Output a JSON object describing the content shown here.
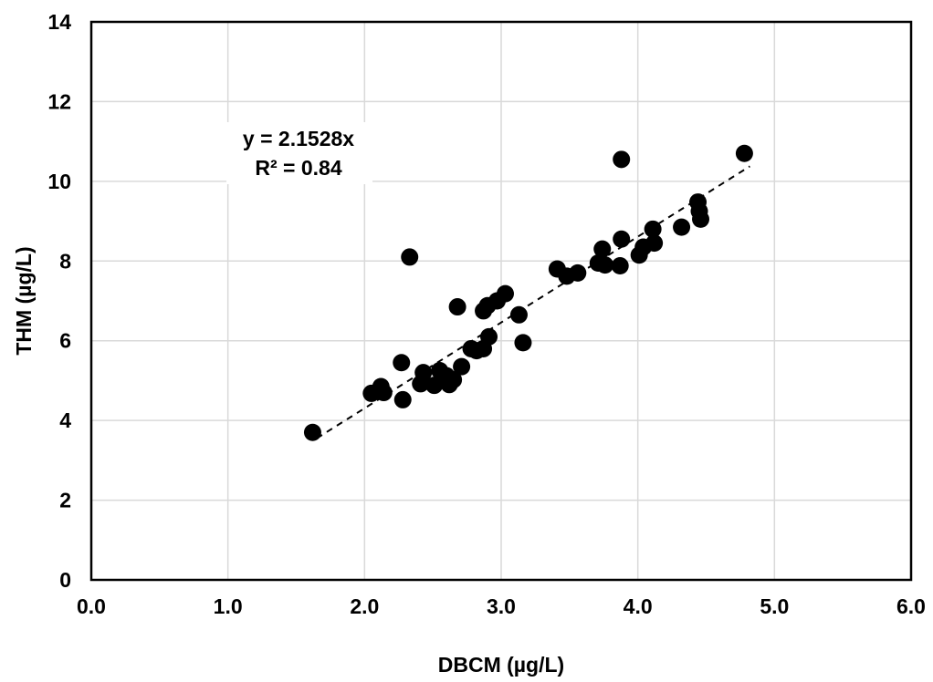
{
  "chart_data": {
    "type": "scatter",
    "xlabel": "DBCM (µg/L)",
    "ylabel": "THM (µg/L)",
    "xlim": [
      0,
      6
    ],
    "ylim": [
      0,
      14
    ],
    "xticks": [
      "0.0",
      "1.0",
      "2.0",
      "3.0",
      "4.0",
      "5.0",
      "6.0"
    ],
    "yticks": [
      "0",
      "2",
      "4",
      "6",
      "8",
      "10",
      "12",
      "14"
    ],
    "grid": true,
    "marker_color": "#000000",
    "series": [
      {
        "points": [
          [
            1.62,
            3.7
          ],
          [
            2.05,
            4.68
          ],
          [
            2.12,
            4.85
          ],
          [
            2.14,
            4.7
          ],
          [
            2.27,
            5.45
          ],
          [
            2.28,
            4.52
          ],
          [
            2.33,
            8.1
          ],
          [
            2.41,
            4.92
          ],
          [
            2.43,
            5.2
          ],
          [
            2.51,
            4.88
          ],
          [
            2.55,
            5.25
          ],
          [
            2.6,
            5.12
          ],
          [
            2.62,
            4.9
          ],
          [
            2.65,
            5.02
          ],
          [
            2.68,
            6.85
          ],
          [
            2.71,
            5.35
          ],
          [
            2.78,
            5.8
          ],
          [
            2.82,
            5.75
          ],
          [
            2.87,
            5.8
          ],
          [
            2.87,
            6.75
          ],
          [
            2.9,
            6.88
          ],
          [
            2.91,
            6.1
          ],
          [
            2.97,
            7.0
          ],
          [
            3.03,
            7.18
          ],
          [
            3.13,
            6.65
          ],
          [
            3.16,
            5.95
          ],
          [
            3.41,
            7.8
          ],
          [
            3.48,
            7.62
          ],
          [
            3.56,
            7.7
          ],
          [
            3.71,
            7.95
          ],
          [
            3.74,
            8.3
          ],
          [
            3.76,
            7.9
          ],
          [
            3.87,
            7.88
          ],
          [
            3.88,
            10.55
          ],
          [
            3.88,
            8.55
          ],
          [
            4.01,
            8.15
          ],
          [
            4.04,
            8.35
          ],
          [
            4.11,
            8.8
          ],
          [
            4.12,
            8.45
          ],
          [
            4.32,
            8.85
          ],
          [
            4.44,
            9.48
          ],
          [
            4.45,
            9.25
          ],
          [
            4.46,
            9.05
          ],
          [
            4.78,
            10.7
          ]
        ]
      }
    ],
    "trendline": {
      "slope": 2.1528,
      "x_range": [
        1.65,
        4.82
      ],
      "style": "dashed",
      "equation": "y = 2.1528x",
      "r_squared": "R² = 0.84"
    }
  }
}
